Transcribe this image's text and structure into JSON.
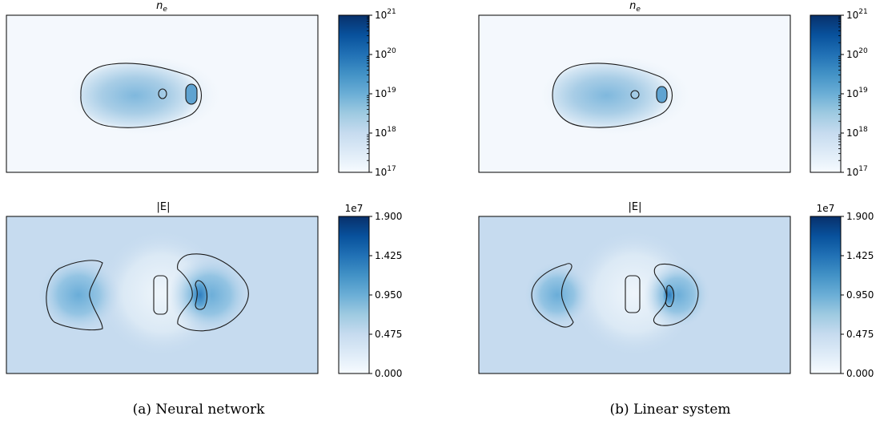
{
  "chart_data": [
    {
      "type": "heatmap",
      "panel": "a",
      "title_base": "n",
      "title_sub": "e",
      "colorbar": {
        "scale": "log",
        "range": [
          1e+17,
          1e+21
        ],
        "ticks": [
          {
            "base": "10",
            "exp": "17",
            "value": 1e+17
          },
          {
            "base": "10",
            "exp": "18",
            "value": 1e+18
          },
          {
            "base": "10",
            "exp": "19",
            "value": 1e+19
          },
          {
            "base": "10",
            "exp": "20",
            "value": 1e+20
          },
          {
            "base": "10",
            "exp": "21",
            "value": 1e+21
          }
        ],
        "colormap": "Blues"
      }
    },
    {
      "type": "heatmap",
      "panel": "b",
      "title_base": "n",
      "title_sub": "e",
      "colorbar": {
        "scale": "log",
        "range": [
          1e+17,
          1e+21
        ],
        "ticks": [
          {
            "base": "10",
            "exp": "17",
            "value": 1e+17
          },
          {
            "base": "10",
            "exp": "18",
            "value": 1e+18
          },
          {
            "base": "10",
            "exp": "19",
            "value": 1e+19
          },
          {
            "base": "10",
            "exp": "20",
            "value": 1e+20
          },
          {
            "base": "10",
            "exp": "21",
            "value": 1e+21
          }
        ],
        "colormap": "Blues"
      }
    },
    {
      "type": "heatmap",
      "panel": "a",
      "title": "|E|",
      "colorbar": {
        "scale": "linear",
        "range": [
          0.0,
          1.9
        ],
        "offset_label": "1e7",
        "ticks": [
          "0.000",
          "0.475",
          "0.950",
          "1.425",
          "1.900"
        ],
        "colormap": "Blues"
      }
    },
    {
      "type": "heatmap",
      "panel": "b",
      "title": "|E|",
      "colorbar": {
        "scale": "linear",
        "range": [
          0.0,
          1.9
        ],
        "offset_label": "1e7",
        "ticks": [
          "0.000",
          "0.475",
          "0.950",
          "1.425",
          "1.900"
        ],
        "colormap": "Blues"
      }
    }
  ],
  "captions": {
    "a": "(a) Neural network",
    "b": "(b) Linear system"
  },
  "colors": {
    "background_low": "#f4f8fd",
    "field_background": "#c6dbef",
    "colormap_light": "#f7fbff",
    "colormap_dark": "#08306b",
    "contour": "#1a1a1a"
  }
}
